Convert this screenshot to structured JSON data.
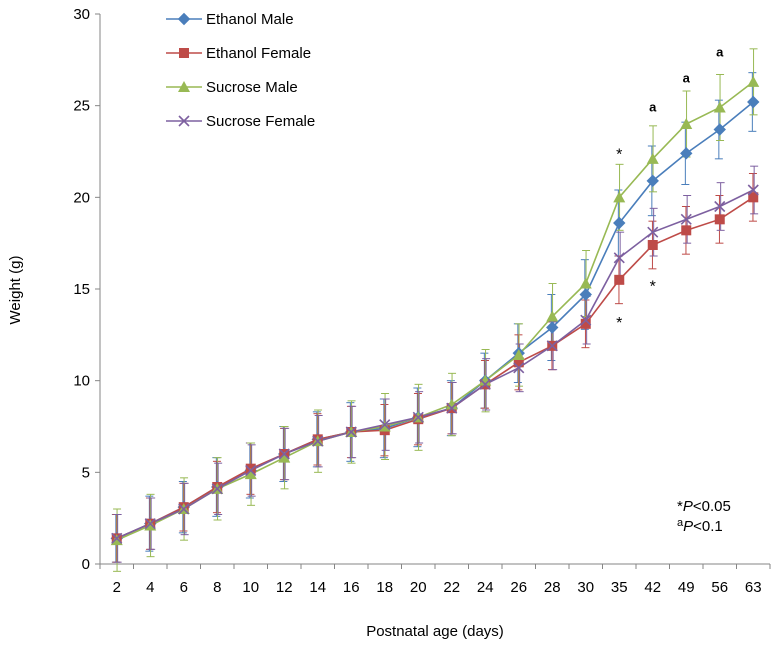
{
  "chart_data": {
    "type": "line",
    "xlabel": "Postnatal age (days)",
    "ylabel": "Weight (g)",
    "ylim": [
      0,
      30
    ],
    "yticks": [
      0,
      5,
      10,
      15,
      20,
      25,
      30
    ],
    "categories": [
      "2",
      "4",
      "6",
      "8",
      "10",
      "12",
      "14",
      "16",
      "18",
      "20",
      "22",
      "24",
      "26",
      "28",
      "30",
      "35",
      "42",
      "49",
      "56",
      "63"
    ],
    "grid": false,
    "legend_position": "top-left",
    "series": [
      {
        "name": "Ethanol Male",
        "color": "#4a7ebb",
        "marker": "diamond",
        "values": [
          1.4,
          2.2,
          3.1,
          4.2,
          5.1,
          6.0,
          6.8,
          7.2,
          7.4,
          8.0,
          8.5,
          10.0,
          11.5,
          12.9,
          14.7,
          18.6,
          20.9,
          22.4,
          23.7,
          25.2
        ],
        "errors": [
          1.3,
          1.5,
          1.4,
          1.6,
          1.5,
          1.5,
          1.5,
          1.6,
          1.6,
          1.6,
          1.5,
          1.5,
          1.6,
          1.8,
          1.9,
          1.8,
          1.9,
          1.7,
          1.6,
          1.6
        ]
      },
      {
        "name": "Ethanol Female",
        "color": "#be4b48",
        "marker": "square",
        "values": [
          1.4,
          2.2,
          3.1,
          4.2,
          5.2,
          6.0,
          6.8,
          7.2,
          7.3,
          7.9,
          8.5,
          9.8,
          11.0,
          11.9,
          13.1,
          15.5,
          17.4,
          18.2,
          18.8,
          20.0
        ],
        "errors": [
          1.3,
          1.4,
          1.3,
          1.4,
          1.4,
          1.4,
          1.4,
          1.4,
          1.4,
          1.4,
          1.4,
          1.3,
          1.5,
          1.3,
          1.3,
          1.3,
          1.3,
          1.3,
          1.3,
          1.3
        ]
      },
      {
        "name": "Sucrose Male",
        "color": "#98b954",
        "marker": "triangle",
        "values": [
          1.3,
          2.1,
          3.0,
          4.1,
          4.9,
          5.8,
          6.7,
          7.2,
          7.5,
          8.0,
          8.7,
          10.0,
          11.4,
          13.5,
          15.3,
          20.0,
          22.1,
          24.0,
          24.9,
          26.3
        ],
        "errors": [
          1.7,
          1.7,
          1.7,
          1.7,
          1.7,
          1.7,
          1.7,
          1.7,
          1.8,
          1.8,
          1.7,
          1.7,
          1.7,
          1.8,
          1.8,
          1.8,
          1.8,
          1.8,
          1.8,
          1.8
        ]
      },
      {
        "name": "Sucrose Female",
        "color": "#7d60a0",
        "marker": "x",
        "values": [
          1.4,
          2.2,
          3.0,
          4.1,
          5.1,
          6.0,
          6.7,
          7.2,
          7.6,
          8.0,
          8.5,
          9.8,
          10.7,
          11.9,
          13.3,
          16.7,
          18.1,
          18.8,
          19.5,
          20.4
        ],
        "errors": [
          1.3,
          1.4,
          1.4,
          1.4,
          1.4,
          1.4,
          1.4,
          1.4,
          1.4,
          1.4,
          1.4,
          1.4,
          1.3,
          1.3,
          1.3,
          1.4,
          1.3,
          1.3,
          1.3,
          1.3
        ]
      }
    ],
    "annotations": [
      {
        "category": "35",
        "value": 22.4,
        "text": "*",
        "style": "star"
      },
      {
        "category": "35",
        "value": 13.2,
        "text": "*",
        "style": "star"
      },
      {
        "category": "42",
        "value": 15.2,
        "text": "*",
        "style": "star"
      },
      {
        "category": "42",
        "value": 25.0,
        "text": "a",
        "style": "small"
      },
      {
        "category": "49",
        "value": 26.6,
        "text": "a",
        "style": "small"
      },
      {
        "category": "56",
        "value": 28.0,
        "text": "a",
        "style": "small"
      }
    ],
    "notes": [
      {
        "prefix": "*",
        "italic": "P",
        "suffix": "<0.05"
      },
      {
        "prefix": "a",
        "italic": "P",
        "suffix": "<0.1"
      }
    ]
  }
}
